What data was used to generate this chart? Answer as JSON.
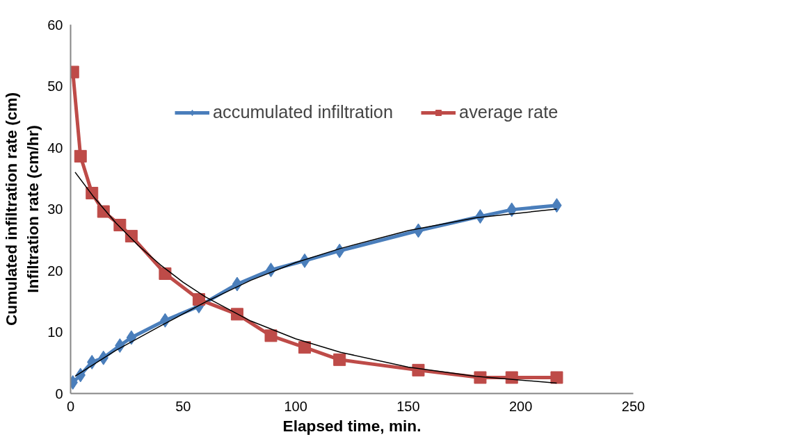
{
  "chart_data": {
    "type": "line",
    "xlabel": "Elapsed time, min.",
    "ylabel": "Cumulated infiltration rate (cm)\nInfiltration rate (cm/hr)",
    "x": [
      1,
      4.4,
      9.5,
      14.6,
      21.9,
      27,
      42,
      57,
      74,
      89,
      104,
      119.5,
      154.5,
      182,
      196,
      216
    ],
    "series": [
      {
        "name": "accumulated infiltration",
        "color": "#4a7ebb",
        "marker": "diamond",
        "values": [
          1.8,
          3.0,
          5.1,
          5.8,
          7.8,
          9.1,
          11.9,
          14.2,
          17.8,
          20.1,
          21.6,
          23.2,
          26.5,
          28.8,
          29.9,
          30.6
        ]
      },
      {
        "name": "average rate",
        "color": "#be4b48",
        "marker": "square",
        "values": [
          52.3,
          38.6,
          32.6,
          29.6,
          27.4,
          25.6,
          19.5,
          15.3,
          12.9,
          9.4,
          7.5,
          5.5,
          3.8,
          2.6,
          2.6,
          2.6
        ]
      },
      {
        "color": "#000000",
        "marker": "none",
        "x": [
          2,
          10,
          20,
          30,
          40,
          50,
          60,
          80,
          100,
          120,
          150,
          180,
          216
        ],
        "values": [
          36.0,
          32.1,
          27.8,
          24.1,
          20.9,
          18.1,
          15.7,
          11.8,
          8.9,
          6.7,
          4.3,
          2.8,
          1.7
        ]
      },
      {
        "color": "#000000",
        "marker": "none",
        "x": [
          2,
          20,
          40,
          60,
          80,
          100,
          120,
          150,
          180,
          216
        ],
        "values": [
          2.8,
          7.0,
          11.0,
          14.9,
          18.4,
          21.3,
          23.6,
          26.5,
          28.6,
          30.0
        ]
      }
    ],
    "xlim": [
      0,
      250
    ],
    "xticks": [
      0,
      50,
      100,
      150,
      200,
      250
    ],
    "ylim": [
      0,
      60
    ],
    "yticks": [
      0,
      10,
      20,
      30,
      40,
      50,
      60
    ],
    "grid": false,
    "legend": "top right"
  }
}
